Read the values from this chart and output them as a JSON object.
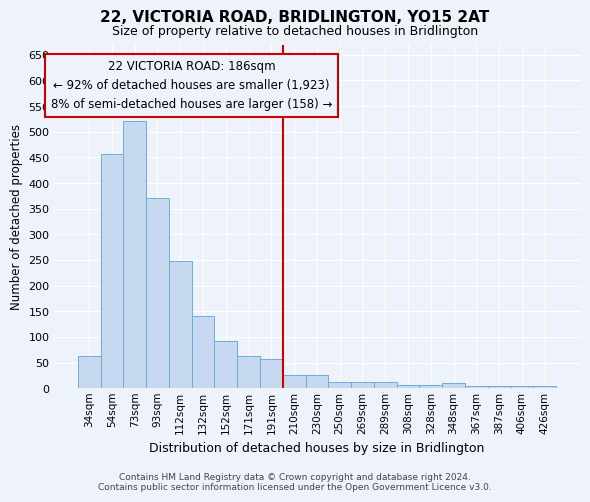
{
  "title": "22, VICTORIA ROAD, BRIDLINGTON, YO15 2AT",
  "subtitle": "Size of property relative to detached houses in Bridlington",
  "xlabel": "Distribution of detached houses by size in Bridlington",
  "ylabel": "Number of detached properties",
  "categories": [
    "34sqm",
    "54sqm",
    "73sqm",
    "93sqm",
    "112sqm",
    "132sqm",
    "152sqm",
    "171sqm",
    "191sqm",
    "210sqm",
    "230sqm",
    "250sqm",
    "269sqm",
    "289sqm",
    "308sqm",
    "328sqm",
    "348sqm",
    "367sqm",
    "387sqm",
    "406sqm",
    "426sqm"
  ],
  "values": [
    62,
    457,
    520,
    370,
    248,
    140,
    93,
    62,
    57,
    26,
    26,
    12,
    12,
    12,
    7,
    7,
    10,
    4,
    4,
    4,
    4
  ],
  "bar_color": "#c6d9f0",
  "bar_edge_color": "#6baed6",
  "vline_color": "#cc0000",
  "annotation_title": "22 VICTORIA ROAD: 186sqm",
  "annotation_line1": "← 92% of detached houses are smaller (1,923)",
  "annotation_line2": "8% of semi-detached houses are larger (158) →",
  "annotation_box_edgecolor": "#cc0000",
  "ylim": [
    0,
    670
  ],
  "yticks": [
    0,
    50,
    100,
    150,
    200,
    250,
    300,
    350,
    400,
    450,
    500,
    550,
    600,
    650
  ],
  "footnote1": "Contains HM Land Registry data © Crown copyright and database right 2024.",
  "footnote2": "Contains public sector information licensed under the Open Government Licence v3.0.",
  "bg_color": "#eef2fb",
  "grid_color": "#ffffff"
}
